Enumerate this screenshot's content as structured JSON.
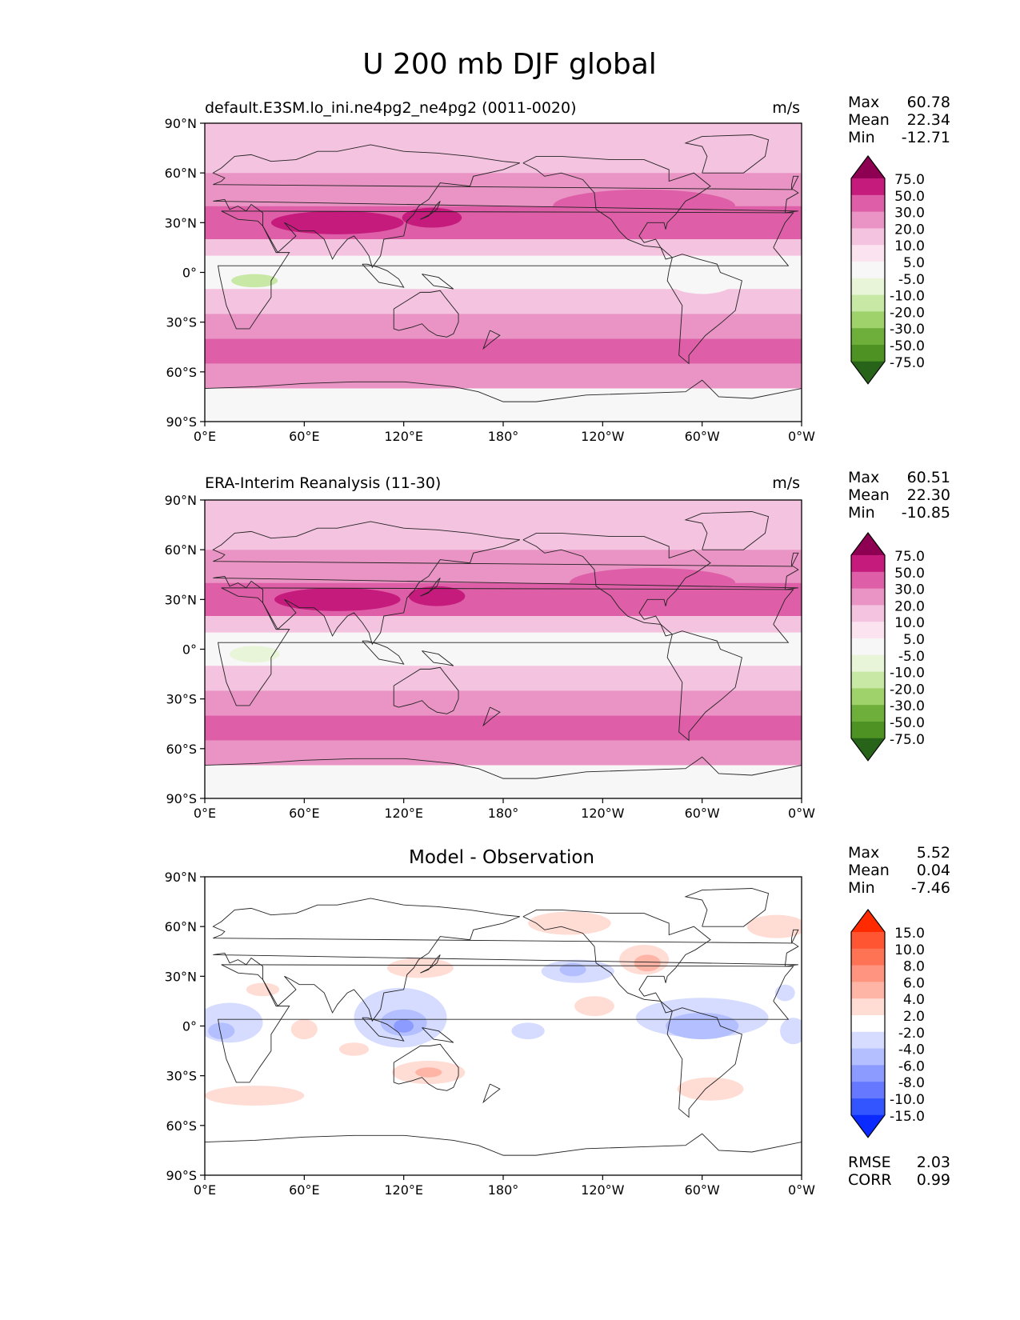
{
  "figure": {
    "title": "U 200 mb DJF global"
  },
  "chart_data": [
    {
      "type": "heatmap",
      "title": "default.E3SM.lo_ini.ne4pg2_ne4pg2 (0011-0020)",
      "units": "m/s",
      "xticks": [
        "0°E",
        "60°E",
        "120°E",
        "180°",
        "120°W",
        "60°W",
        "0°W"
      ],
      "yticks": [
        "90°N",
        "60°N",
        "30°N",
        "0°",
        "30°S",
        "60°S",
        "90°S"
      ],
      "xlim": [
        0,
        360
      ],
      "ylim": [
        -90,
        90
      ],
      "stats": [
        {
          "label": "Max",
          "value": "60.78"
        },
        {
          "label": "Mean",
          "value": "22.34"
        },
        {
          "label": "Min",
          "value": "-12.71"
        }
      ],
      "colorbar": {
        "labels": [
          "75.0",
          "50.0",
          "30.0",
          "20.0",
          "10.0",
          "5.0",
          "-5.0",
          "-10.0",
          "-20.0",
          "-30.0",
          "-50.0",
          "-75.0"
        ],
        "colors": [
          "#8e0152",
          "#c51b7d",
          "#de5fa7",
          "#e994c4",
          "#f4c3df",
          "#fbe3f0",
          "#f7f7f7",
          "#e8f5d8",
          "#c8e8a6",
          "#9fd26a",
          "#6eae3a",
          "#4d9222",
          "#276419"
        ]
      },
      "bands": [
        {
          "lat": [
            60,
            90
          ],
          "value": 12
        },
        {
          "lat": [
            40,
            60
          ],
          "value": 24
        },
        {
          "lat": [
            20,
            40
          ],
          "value": 38
        },
        {
          "lat": [
            10,
            20
          ],
          "value": 17
        },
        {
          "lat": [
            -10,
            10
          ],
          "value": 4
        },
        {
          "lat": [
            -25,
            -10
          ],
          "value": 14
        },
        {
          "lat": [
            -40,
            -25
          ],
          "value": 24
        },
        {
          "lat": [
            -55,
            -40
          ],
          "value": 36
        },
        {
          "lat": [
            -70,
            -55
          ],
          "value": 22
        },
        {
          "lat": [
            -90,
            -70
          ],
          "value": 3
        }
      ],
      "blobs": [
        {
          "lon": 80,
          "lat": 30,
          "rlon": 40,
          "rlat": 7,
          "value": 55
        },
        {
          "lon": 137,
          "lat": 33,
          "rlon": 18,
          "rlat": 6,
          "value": 55
        },
        {
          "lon": 265,
          "lat": 40,
          "rlon": 55,
          "rlat": 10,
          "value": 38
        },
        {
          "lon": 30,
          "lat": -5,
          "rlon": 14,
          "rlat": 4,
          "value": -12
        },
        {
          "lon": 90,
          "lat": 0,
          "rlon": 45,
          "rlat": 7,
          "value": 2
        },
        {
          "lon": 300,
          "lat": -5,
          "rlon": 20,
          "rlat": 8,
          "value": 2
        }
      ]
    },
    {
      "type": "heatmap",
      "title": "ERA-Interim Reanalysis (11-30)",
      "units": "m/s",
      "xticks": [
        "0°E",
        "60°E",
        "120°E",
        "180°",
        "120°W",
        "60°W",
        "0°W"
      ],
      "yticks": [
        "90°N",
        "60°N",
        "30°N",
        "0°",
        "30°S",
        "60°S",
        "90°S"
      ],
      "xlim": [
        0,
        360
      ],
      "ylim": [
        -90,
        90
      ],
      "stats": [
        {
          "label": "Max",
          "value": "60.51"
        },
        {
          "label": "Mean",
          "value": "22.30"
        },
        {
          "label": "Min",
          "value": "-10.85"
        }
      ],
      "colorbar": {
        "labels": [
          "75.0",
          "50.0",
          "30.0",
          "20.0",
          "10.0",
          "5.0",
          "-5.0",
          "-10.0",
          "-20.0",
          "-30.0",
          "-50.0",
          "-75.0"
        ],
        "colors": [
          "#8e0152",
          "#c51b7d",
          "#de5fa7",
          "#e994c4",
          "#f4c3df",
          "#fbe3f0",
          "#f7f7f7",
          "#e8f5d8",
          "#c8e8a6",
          "#9fd26a",
          "#6eae3a",
          "#4d9222",
          "#276419"
        ]
      },
      "bands": [
        {
          "lat": [
            60,
            90
          ],
          "value": 12
        },
        {
          "lat": [
            40,
            60
          ],
          "value": 24
        },
        {
          "lat": [
            20,
            40
          ],
          "value": 38
        },
        {
          "lat": [
            10,
            20
          ],
          "value": 17
        },
        {
          "lat": [
            -10,
            10
          ],
          "value": 4
        },
        {
          "lat": [
            -25,
            -10
          ],
          "value": 14
        },
        {
          "lat": [
            -40,
            -25
          ],
          "value": 24
        },
        {
          "lat": [
            -55,
            -40
          ],
          "value": 36
        },
        {
          "lat": [
            -70,
            -55
          ],
          "value": 22
        },
        {
          "lat": [
            -90,
            -70
          ],
          "value": 3
        }
      ],
      "blobs": [
        {
          "lon": 80,
          "lat": 30,
          "rlon": 38,
          "rlat": 7,
          "value": 55
        },
        {
          "lon": 140,
          "lat": 32,
          "rlon": 17,
          "rlat": 6,
          "value": 55
        },
        {
          "lon": 270,
          "lat": 40,
          "rlon": 50,
          "rlat": 9,
          "value": 38
        },
        {
          "lon": 30,
          "lat": -3,
          "rlon": 15,
          "rlat": 5,
          "value": -8
        },
        {
          "lon": 100,
          "lat": 0,
          "rlon": 40,
          "rlat": 7,
          "value": 2
        },
        {
          "lon": 310,
          "lat": -3,
          "rlon": 16,
          "rlat": 6,
          "value": 2
        }
      ]
    },
    {
      "type": "heatmap",
      "title": "Model - Observation",
      "units": "",
      "xticks": [
        "0°E",
        "60°E",
        "120°E",
        "180°",
        "120°W",
        "60°W",
        "0°W"
      ],
      "yticks": [
        "90°N",
        "60°N",
        "30°N",
        "0°",
        "30°S",
        "60°S",
        "90°S"
      ],
      "xlim": [
        0,
        360
      ],
      "ylim": [
        -90,
        90
      ],
      "stats": [
        {
          "label": "Max",
          "value": "5.52"
        },
        {
          "label": "Mean",
          "value": "0.04"
        },
        {
          "label": "Min",
          "value": "-7.46"
        }
      ],
      "extra_stats": [
        {
          "label": "RMSE",
          "value": "2.03"
        },
        {
          "label": "CORR",
          "value": "0.99"
        }
      ],
      "colorbar": {
        "labels": [
          "15.0",
          "10.0",
          "8.0",
          "6.0",
          "4.0",
          "2.0",
          "-2.0",
          "-4.0",
          "-6.0",
          "-8.0",
          "-10.0",
          "-15.0"
        ],
        "colors": [
          "#ff2a00",
          "#ff5533",
          "#ff7355",
          "#ff9580",
          "#ffb5a5",
          "#ffdcd4",
          "#ffffff",
          "#d6dcff",
          "#b3bfff",
          "#8c9bff",
          "#6678ff",
          "#3355ff",
          "#0a2aff"
        ]
      },
      "bands": [
        {
          "lat": [
            -90,
            90
          ],
          "value": 0
        }
      ],
      "blobs": [
        {
          "lon": 220,
          "lat": 62,
          "rlon": 25,
          "rlat": 7,
          "value": 2.5
        },
        {
          "lon": 345,
          "lat": 60,
          "rlon": 18,
          "rlat": 7,
          "value": 2.5
        },
        {
          "lon": 265,
          "lat": 40,
          "rlon": 15,
          "rlat": 9,
          "value": 2.5
        },
        {
          "lon": 267,
          "lat": 38,
          "rlon": 8,
          "rlat": 5,
          "value": 4.5
        },
        {
          "lon": 130,
          "lat": 35,
          "rlon": 20,
          "rlat": 6,
          "value": 2.5
        },
        {
          "lon": 225,
          "lat": 33,
          "rlon": 22,
          "rlat": 7,
          "value": -2.5
        },
        {
          "lon": 222,
          "lat": 34,
          "rlon": 8,
          "rlat": 4,
          "value": -4.5
        },
        {
          "lon": 15,
          "lat": 2,
          "rlon": 20,
          "rlat": 12,
          "value": -2.5
        },
        {
          "lon": 10,
          "lat": -3,
          "rlon": 8,
          "rlat": 5,
          "value": -4.5
        },
        {
          "lon": 118,
          "lat": 5,
          "rlon": 28,
          "rlat": 18,
          "value": -2.5
        },
        {
          "lon": 120,
          "lat": 2,
          "rlon": 14,
          "rlat": 8,
          "value": -4.5
        },
        {
          "lon": 120,
          "lat": 0,
          "rlon": 6,
          "rlat": 4,
          "value": -6.5
        },
        {
          "lon": 300,
          "lat": 5,
          "rlon": 40,
          "rlat": 12,
          "value": -2.5
        },
        {
          "lon": 300,
          "lat": 0,
          "rlon": 22,
          "rlat": 8,
          "value": -4.5
        },
        {
          "lon": 195,
          "lat": -3,
          "rlon": 10,
          "rlat": 5,
          "value": -2.5
        },
        {
          "lon": 355,
          "lat": -3,
          "rlon": 8,
          "rlat": 8,
          "value": -2.5
        },
        {
          "lon": 135,
          "lat": -28,
          "rlon": 22,
          "rlat": 7,
          "value": 2.5
        },
        {
          "lon": 135,
          "lat": -28,
          "rlon": 8,
          "rlat": 3,
          "value": 4.5
        },
        {
          "lon": 30,
          "lat": -42,
          "rlon": 30,
          "rlat": 6,
          "value": 2.5
        },
        {
          "lon": 305,
          "lat": -38,
          "rlon": 20,
          "rlat": 7,
          "value": 2.5
        },
        {
          "lon": 60,
          "lat": -2,
          "rlon": 8,
          "rlat": 6,
          "value": 2.5
        },
        {
          "lon": 90,
          "lat": -14,
          "rlon": 9,
          "rlat": 4,
          "value": 2.5
        },
        {
          "lon": 35,
          "lat": 22,
          "rlon": 10,
          "rlat": 4,
          "value": 2.5
        },
        {
          "lon": 235,
          "lat": 12,
          "rlon": 12,
          "rlat": 6,
          "value": 2.5
        },
        {
          "lon": 350,
          "lat": 20,
          "rlon": 6,
          "rlat": 5,
          "value": -2.5
        }
      ]
    }
  ]
}
